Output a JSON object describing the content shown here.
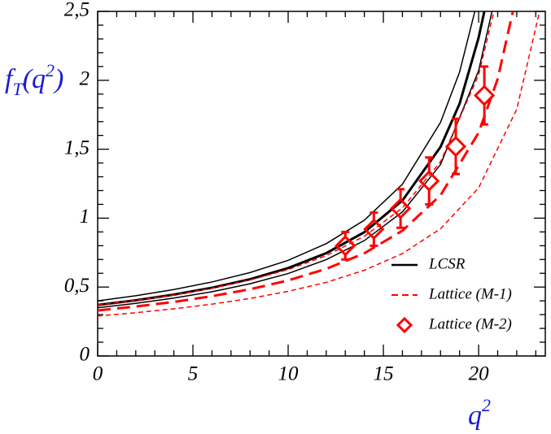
{
  "chart_data": {
    "type": "line",
    "xlabel": [
      "q",
      "2"
    ],
    "ylabel": [
      "f",
      "T",
      "(q",
      "2",
      ")"
    ],
    "xlim": [
      0,
      23.5
    ],
    "ylim": [
      0,
      2.5
    ],
    "xticks": [
      0,
      5,
      10,
      15,
      20
    ],
    "yticks": [
      0,
      {
        "value": 0.5,
        "label": "0,5"
      },
      1,
      {
        "value": 1.5,
        "label": "1,5"
      },
      2,
      {
        "value": 2.5,
        "label": "2,5"
      }
    ],
    "legend": "lower right",
    "series": [
      {
        "name": "LCSR",
        "color": "#000000",
        "style": "solid",
        "curves": [
          {
            "x": [
              0,
              2,
              4,
              6,
              8,
              10,
              12,
              14,
              16,
              18,
              19,
              20,
              20.3
            ],
            "values": [
              0.37,
              0.404,
              0.445,
              0.495,
              0.557,
              0.638,
              0.746,
              0.898,
              1.128,
              1.517,
              1.83,
              2.31,
              2.5
            ]
          },
          {
            "x": [
              0,
              2,
              4,
              6,
              8,
              10,
              12,
              14,
              16,
              18,
              19,
              19.8
            ],
            "values": [
              0.4,
              0.437,
              0.482,
              0.537,
              0.605,
              0.694,
              0.815,
              0.985,
              1.246,
              1.695,
              2.06,
              2.5
            ]
          },
          {
            "x": [
              0,
              2,
              4,
              6,
              8,
              10,
              12,
              14,
              16,
              18,
              20,
              20.7
            ],
            "values": [
              0.35,
              0.382,
              0.42,
              0.466,
              0.524,
              0.598,
              0.699,
              0.837,
              1.045,
              1.389,
              2.07,
              2.5
            ]
          }
        ]
      },
      {
        "name": "Lattice (M-1)",
        "color": "#ff0000",
        "style": "dashed",
        "curves": [
          {
            "x": [
              0,
              2,
              4,
              6,
              8,
              10,
              12,
              14,
              16,
              18,
              20,
              21,
              21.8
            ],
            "values": [
              0.33,
              0.359,
              0.392,
              0.434,
              0.484,
              0.548,
              0.632,
              0.745,
              0.909,
              1.166,
              1.62,
              2.01,
              2.5
            ]
          },
          {
            "x": [
              0,
              2,
              4,
              6,
              8,
              10,
              12,
              14,
              16,
              18,
              20,
              20.8
            ],
            "values": [
              0.37,
              0.403,
              0.443,
              0.491,
              0.551,
              0.627,
              0.728,
              0.869,
              1.074,
              1.409,
              2.04,
              2.5
            ]
          },
          {
            "x": [
              0,
              2,
              4,
              6,
              8,
              10,
              12,
              14,
              16,
              18,
              20,
              22,
              23.2
            ],
            "values": [
              0.29,
              0.314,
              0.342,
              0.376,
              0.417,
              0.469,
              0.534,
              0.622,
              0.743,
              0.923,
              1.22,
              1.79,
              2.5
            ]
          }
        ]
      },
      {
        "name": "Lattice (M-2)",
        "color": "#ff0000",
        "style": "diamond",
        "x": [
          13.0,
          14.5,
          15.9,
          17.4,
          18.8,
          20.3
        ],
        "values": [
          0.8,
          0.92,
          1.07,
          1.27,
          1.52,
          1.89
        ],
        "errors": [
          0.1,
          0.12,
          0.14,
          0.17,
          0.2,
          0.21
        ]
      }
    ]
  }
}
